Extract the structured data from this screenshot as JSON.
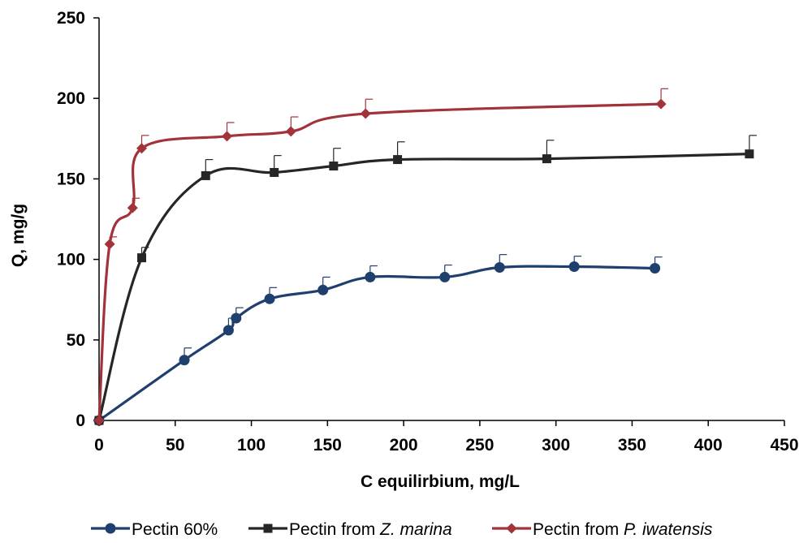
{
  "chart_data": {
    "type": "scatter",
    "title": "",
    "xlabel": "C equilirbium, mg/L",
    "ylabel": "Q, mg/g",
    "xlim": [
      0,
      450
    ],
    "ylim": [
      0,
      250
    ],
    "xticks": [
      "0",
      "50",
      "100",
      "150",
      "200",
      "250",
      "300",
      "350",
      "400",
      "450"
    ],
    "yticks": [
      "0",
      "50",
      "100",
      "150",
      "200",
      "250"
    ],
    "grid": false,
    "legend_position": "bottom",
    "series": [
      {
        "name": "Pectin 60%",
        "legend_parts": [
          "Pectin 60%",
          ""
        ],
        "color": "#1f3f6e",
        "marker": "circle",
        "x": [
          0,
          56,
          85,
          90,
          112,
          147,
          178,
          227,
          263,
          312,
          365
        ],
        "y": [
          0,
          37.5,
          56,
          63.5,
          75.5,
          81,
          89,
          89,
          95,
          95.5,
          94.5
        ],
        "errors": [
          0,
          7.5,
          7.5,
          6.5,
          7,
          8,
          7,
          7.5,
          8,
          6.5,
          7
        ]
      },
      {
        "name": "Pectin from Z. marina",
        "legend_parts": [
          "Pectin from ",
          "Z. marina"
        ],
        "color": "#262626",
        "marker": "square",
        "x": [
          0,
          28,
          70,
          115,
          154,
          196,
          294,
          427
        ],
        "y": [
          0,
          101,
          152,
          154,
          158,
          162,
          162.5,
          165.5
        ],
        "errors": [
          0,
          6.5,
          10,
          10.5,
          11,
          11,
          11.5,
          11.5
        ]
      },
      {
        "name": "Pectin from P. iwatensis",
        "legend_parts": [
          "Pectin from ",
          "P. iwatensis"
        ],
        "color": "#a3333a",
        "marker": "diamond",
        "x": [
          0,
          7,
          22,
          28,
          84,
          126,
          175,
          369
        ],
        "y": [
          0,
          109.5,
          132,
          169,
          176.5,
          179.5,
          190.5,
          196.5
        ],
        "errors": [
          0,
          4.5,
          6,
          8,
          8.5,
          9,
          9,
          9.5
        ]
      }
    ]
  }
}
